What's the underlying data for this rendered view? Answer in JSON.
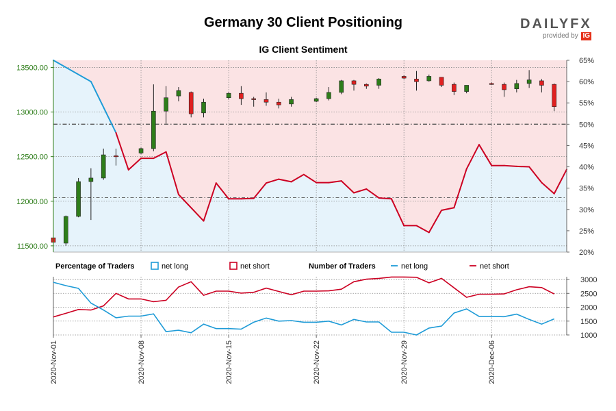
{
  "chart_data": {
    "type": "candlestick_sentiment",
    "title": "Germany 30 Client Positioning",
    "subtitle": "IG Client Sentiment",
    "brand": {
      "main": "DAILYFX",
      "provided_by": "provided by",
      "ig": "IG"
    },
    "colors": {
      "net_long": "#1e9bd7",
      "net_short": "#cc0022",
      "candle_up": "#2e7d1a",
      "candle_down": "#e02020",
      "short_fill": "#fbe3e4",
      "long_fill": "#e6f3fb",
      "price_axis_text": "#2e7d1a",
      "ig_badge": "#e5311a"
    },
    "dates": [
      "2020-11-01",
      "2020-11-02",
      "2020-11-03",
      "2020-11-04",
      "2020-11-05",
      "2020-11-06",
      "2020-11-08",
      "2020-11-09",
      "2020-11-10",
      "2020-11-11",
      "2020-11-12",
      "2020-11-13",
      "2020-11-15",
      "2020-11-16",
      "2020-11-17",
      "2020-11-18",
      "2020-11-19",
      "2020-11-20",
      "2020-11-22",
      "2020-11-23",
      "2020-11-24",
      "2020-11-25",
      "2020-11-26",
      "2020-11-27",
      "2020-11-29",
      "2020-11-30",
      "2020-12-01",
      "2020-12-02",
      "2020-12-03",
      "2020-12-04",
      "2020-12-06",
      "2020-12-07",
      "2020-12-08",
      "2020-12-09",
      "2020-12-10",
      "2020-12-11"
    ],
    "x_ticks": [
      {
        "date": "2020-11-01",
        "label": "2020-Nov-01"
      },
      {
        "date": "2020-11-08",
        "label": "2020-Nov-08"
      },
      {
        "date": "2020-11-15",
        "label": "2020-Nov-15"
      },
      {
        "date": "2020-11-22",
        "label": "2020-Nov-22"
      },
      {
        "date": "2020-11-29",
        "label": "2020-Nov-29"
      },
      {
        "date": "2020-12-06",
        "label": "2020-Dec-06"
      }
    ],
    "price_axis": {
      "min": 11430,
      "max": 13580,
      "ticks": [
        11500,
        12000,
        12500,
        13000,
        13500
      ],
      "tick_labels": [
        "11500.00",
        "12000.00",
        "12500.00",
        "13000.00",
        "13500.00"
      ]
    },
    "pct_axis": {
      "min": 20,
      "max": 65,
      "ticks": [
        20,
        25,
        30,
        35,
        40,
        45,
        50,
        55,
        60,
        65
      ],
      "tick_labels": [
        "20%",
        "25%",
        "30%",
        "35%",
        "40%",
        "45%",
        "50%",
        "55%",
        "60%",
        "65%"
      ],
      "mid_line": 50
    },
    "candles": [
      {
        "o": 11590,
        "h": 11600,
        "l": 11520,
        "c": 11540
      },
      {
        "o": 11530,
        "h": 11840,
        "l": 11500,
        "c": 11830
      },
      {
        "o": 11830,
        "h": 12260,
        "l": 11820,
        "c": 12220
      },
      {
        "o": 12220,
        "h": 12370,
        "l": 11790,
        "c": 12260
      },
      {
        "o": 12260,
        "h": 12590,
        "l": 12240,
        "c": 12520
      },
      {
        "o": 12510,
        "h": 12590,
        "l": 12400,
        "c": 12500
      },
      {
        "o": 12540,
        "h": 12600,
        "l": 12530,
        "c": 12590
      },
      {
        "o": 12590,
        "h": 13310,
        "l": 12560,
        "c": 13010
      },
      {
        "o": 13010,
        "h": 13290,
        "l": 12870,
        "c": 13160
      },
      {
        "o": 13180,
        "h": 13280,
        "l": 13120,
        "c": 13240
      },
      {
        "o": 13220,
        "h": 13230,
        "l": 12940,
        "c": 12980
      },
      {
        "o": 12990,
        "h": 13150,
        "l": 12940,
        "c": 13110
      },
      {
        "o": 13160,
        "h": 13220,
        "l": 13140,
        "c": 13210
      },
      {
        "o": 13210,
        "h": 13290,
        "l": 13080,
        "c": 13150
      },
      {
        "o": 13150,
        "h": 13170,
        "l": 13060,
        "c": 13140
      },
      {
        "o": 13140,
        "h": 13220,
        "l": 13070,
        "c": 13110
      },
      {
        "o": 13110,
        "h": 13150,
        "l": 13040,
        "c": 13080
      },
      {
        "o": 13090,
        "h": 13170,
        "l": 13060,
        "c": 13140
      },
      {
        "o": 13120,
        "h": 13160,
        "l": 13110,
        "c": 13150
      },
      {
        "o": 13150,
        "h": 13280,
        "l": 13130,
        "c": 13220
      },
      {
        "o": 13220,
        "h": 13360,
        "l": 13200,
        "c": 13350
      },
      {
        "o": 13350,
        "h": 13360,
        "l": 13240,
        "c": 13310
      },
      {
        "o": 13310,
        "h": 13320,
        "l": 13260,
        "c": 13290
      },
      {
        "o": 13300,
        "h": 13380,
        "l": 13260,
        "c": 13370
      },
      {
        "o": 13400,
        "h": 13410,
        "l": 13370,
        "c": 13380
      },
      {
        "o": 13370,
        "h": 13460,
        "l": 13240,
        "c": 13340
      },
      {
        "o": 13350,
        "h": 13420,
        "l": 13340,
        "c": 13400
      },
      {
        "o": 13390,
        "h": 13390,
        "l": 13280,
        "c": 13300
      },
      {
        "o": 13310,
        "h": 13330,
        "l": 13190,
        "c": 13230
      },
      {
        "o": 13230,
        "h": 13300,
        "l": 13210,
        "c": 13300
      },
      {
        "o": 13320,
        "h": 13330,
        "l": 13310,
        "c": 13310
      },
      {
        "o": 13310,
        "h": 13330,
        "l": 13170,
        "c": 13250
      },
      {
        "o": 13260,
        "h": 13360,
        "l": 13220,
        "c": 13320
      },
      {
        "o": 13320,
        "h": 13470,
        "l": 13270,
        "c": 13360
      },
      {
        "o": 13350,
        "h": 13370,
        "l": 13220,
        "c": 13300
      },
      {
        "o": 13310,
        "h": 13320,
        "l": 13010,
        "c": 13060
      }
    ],
    "net_long_pct": [
      65,
      63,
      61,
      57,
      52,
      39.5,
      40.5,
      40.5,
      42,
      33.5,
      30,
      27,
      36,
      32.5,
      32.5,
      32.6,
      36,
      37,
      36.5,
      38.5,
      36,
      36,
      36.5,
      33.5,
      34.5,
      32.5,
      32.2,
      26,
      26,
      24.5,
      30,
      30.5,
      40,
      45,
      40.2,
      40.2,
      40,
      39.9,
      36,
      33.5,
      39.3
    ],
    "sentiment_points": [
      {
        "d": "2020-11-01",
        "v": 65
      },
      {
        "d": "2020-11-04",
        "v": 60
      },
      {
        "d": "2020-11-06",
        "v": 48
      },
      {
        "d": "2020-11-07",
        "v": 39.3
      },
      {
        "d": "2020-11-08",
        "v": 42
      },
      {
        "d": "2020-11-09",
        "v": 42
      },
      {
        "d": "2020-11-10",
        "v": 43.5
      },
      {
        "d": "2020-11-11",
        "v": 33.5
      },
      {
        "d": "2020-11-13",
        "v": 27.3
      },
      {
        "d": "2020-11-14",
        "v": 36.2
      },
      {
        "d": "2020-11-15",
        "v": 32.5
      },
      {
        "d": "2020-11-16",
        "v": 32.5
      },
      {
        "d": "2020-11-17",
        "v": 32.6
      },
      {
        "d": "2020-11-18",
        "v": 36.2
      },
      {
        "d": "2020-11-19",
        "v": 37.1
      },
      {
        "d": "2020-11-20",
        "v": 36.5
      },
      {
        "d": "2020-11-21",
        "v": 38.2
      },
      {
        "d": "2020-11-22",
        "v": 36.3
      },
      {
        "d": "2020-11-23",
        "v": 36.3
      },
      {
        "d": "2020-11-24",
        "v": 36.7
      },
      {
        "d": "2020-11-25",
        "v": 33.9
      },
      {
        "d": "2020-11-26",
        "v": 34.8
      },
      {
        "d": "2020-11-27",
        "v": 32.7
      },
      {
        "d": "2020-11-28",
        "v": 32.5
      },
      {
        "d": "2020-11-29",
        "v": 26.2
      },
      {
        "d": "2020-11-30",
        "v": 26.2
      },
      {
        "d": "2020-12-01",
        "v": 24.6
      },
      {
        "d": "2020-12-02",
        "v": 29.8
      },
      {
        "d": "2020-12-03",
        "v": 30.4
      },
      {
        "d": "2020-12-04",
        "v": 39.5
      },
      {
        "d": "2020-12-05",
        "v": 45.2
      },
      {
        "d": "2020-12-06",
        "v": 40.3
      },
      {
        "d": "2020-12-07",
        "v": 40.3
      },
      {
        "d": "2020-12-08",
        "v": 40.1
      },
      {
        "d": "2020-12-09",
        "v": 40.0
      },
      {
        "d": "2020-12-10",
        "v": 36.3
      },
      {
        "d": "2020-12-11",
        "v": 33.7
      },
      {
        "d": "2020-12-12",
        "v": 39.4
      }
    ],
    "traders_points": [
      {
        "d": "2020-11-01",
        "long": 2900,
        "short": 1650
      },
      {
        "d": "2020-11-02",
        "long": 2780,
        "short": 1780
      },
      {
        "d": "2020-11-03",
        "long": 2680,
        "short": 1920
      },
      {
        "d": "2020-11-04",
        "long": 2150,
        "short": 1900
      },
      {
        "d": "2020-11-05",
        "long": 1900,
        "short": 2050
      },
      {
        "d": "2020-11-06",
        "long": 1620,
        "short": 2500
      },
      {
        "d": "2020-11-07",
        "long": 1680,
        "short": 2300
      },
      {
        "d": "2020-11-08",
        "long": 1680,
        "short": 2300
      },
      {
        "d": "2020-11-09",
        "long": 1760,
        "short": 2200
      },
      {
        "d": "2020-11-10",
        "long": 1120,
        "short": 2250
      },
      {
        "d": "2020-11-11",
        "long": 1170,
        "short": 2730
      },
      {
        "d": "2020-11-12",
        "long": 1080,
        "short": 2920
      },
      {
        "d": "2020-11-13",
        "long": 1390,
        "short": 2430
      },
      {
        "d": "2020-11-14",
        "long": 1230,
        "short": 2580
      },
      {
        "d": "2020-11-15",
        "long": 1230,
        "short": 2580
      },
      {
        "d": "2020-11-16",
        "long": 1210,
        "short": 2510
      },
      {
        "d": "2020-11-17",
        "long": 1460,
        "short": 2540
      },
      {
        "d": "2020-11-18",
        "long": 1610,
        "short": 2690
      },
      {
        "d": "2020-11-19",
        "long": 1500,
        "short": 2570
      },
      {
        "d": "2020-11-20",
        "long": 1520,
        "short": 2450
      },
      {
        "d": "2020-11-21",
        "long": 1460,
        "short": 2580
      },
      {
        "d": "2020-11-22",
        "long": 1460,
        "short": 2580
      },
      {
        "d": "2020-11-23",
        "long": 1500,
        "short": 2590
      },
      {
        "d": "2020-11-24",
        "long": 1360,
        "short": 2650
      },
      {
        "d": "2020-11-25",
        "long": 1560,
        "short": 2920
      },
      {
        "d": "2020-11-26",
        "long": 1470,
        "short": 3010
      },
      {
        "d": "2020-11-27",
        "long": 1470,
        "short": 3040
      },
      {
        "d": "2020-11-28",
        "long": 1100,
        "short": 3090
      },
      {
        "d": "2020-11-29",
        "long": 1100,
        "short": 3090
      },
      {
        "d": "2020-11-30",
        "long": 1000,
        "short": 3080
      },
      {
        "d": "2020-12-01",
        "long": 1250,
        "short": 2880
      },
      {
        "d": "2020-12-02",
        "long": 1320,
        "short": 3040
      },
      {
        "d": "2020-12-03",
        "long": 1790,
        "short": 2700
      },
      {
        "d": "2020-12-04",
        "long": 1940,
        "short": 2360
      },
      {
        "d": "2020-12-05",
        "long": 1670,
        "short": 2470
      },
      {
        "d": "2020-12-06",
        "long": 1670,
        "short": 2470
      },
      {
        "d": "2020-12-07",
        "long": 1660,
        "short": 2480
      },
      {
        "d": "2020-12-08",
        "long": 1750,
        "short": 2630
      },
      {
        "d": "2020-12-09",
        "long": 1560,
        "short": 2740
      },
      {
        "d": "2020-12-10",
        "long": 1390,
        "short": 2710
      },
      {
        "d": "2020-12-11",
        "long": 1580,
        "short": 2480
      }
    ],
    "traders_axis": {
      "min": 1000,
      "max": 3100,
      "ticks": [
        1000,
        1500,
        2000,
        2500,
        3000
      ],
      "tick_labels": [
        "1000",
        "1500",
        "2000",
        "2500",
        "3000"
      ]
    },
    "legend": {
      "pct_title": "Percentage of Traders",
      "num_title": "Number of Traders",
      "net_long": "net long",
      "net_short": "net short"
    },
    "ref_line_price": 12040
  }
}
